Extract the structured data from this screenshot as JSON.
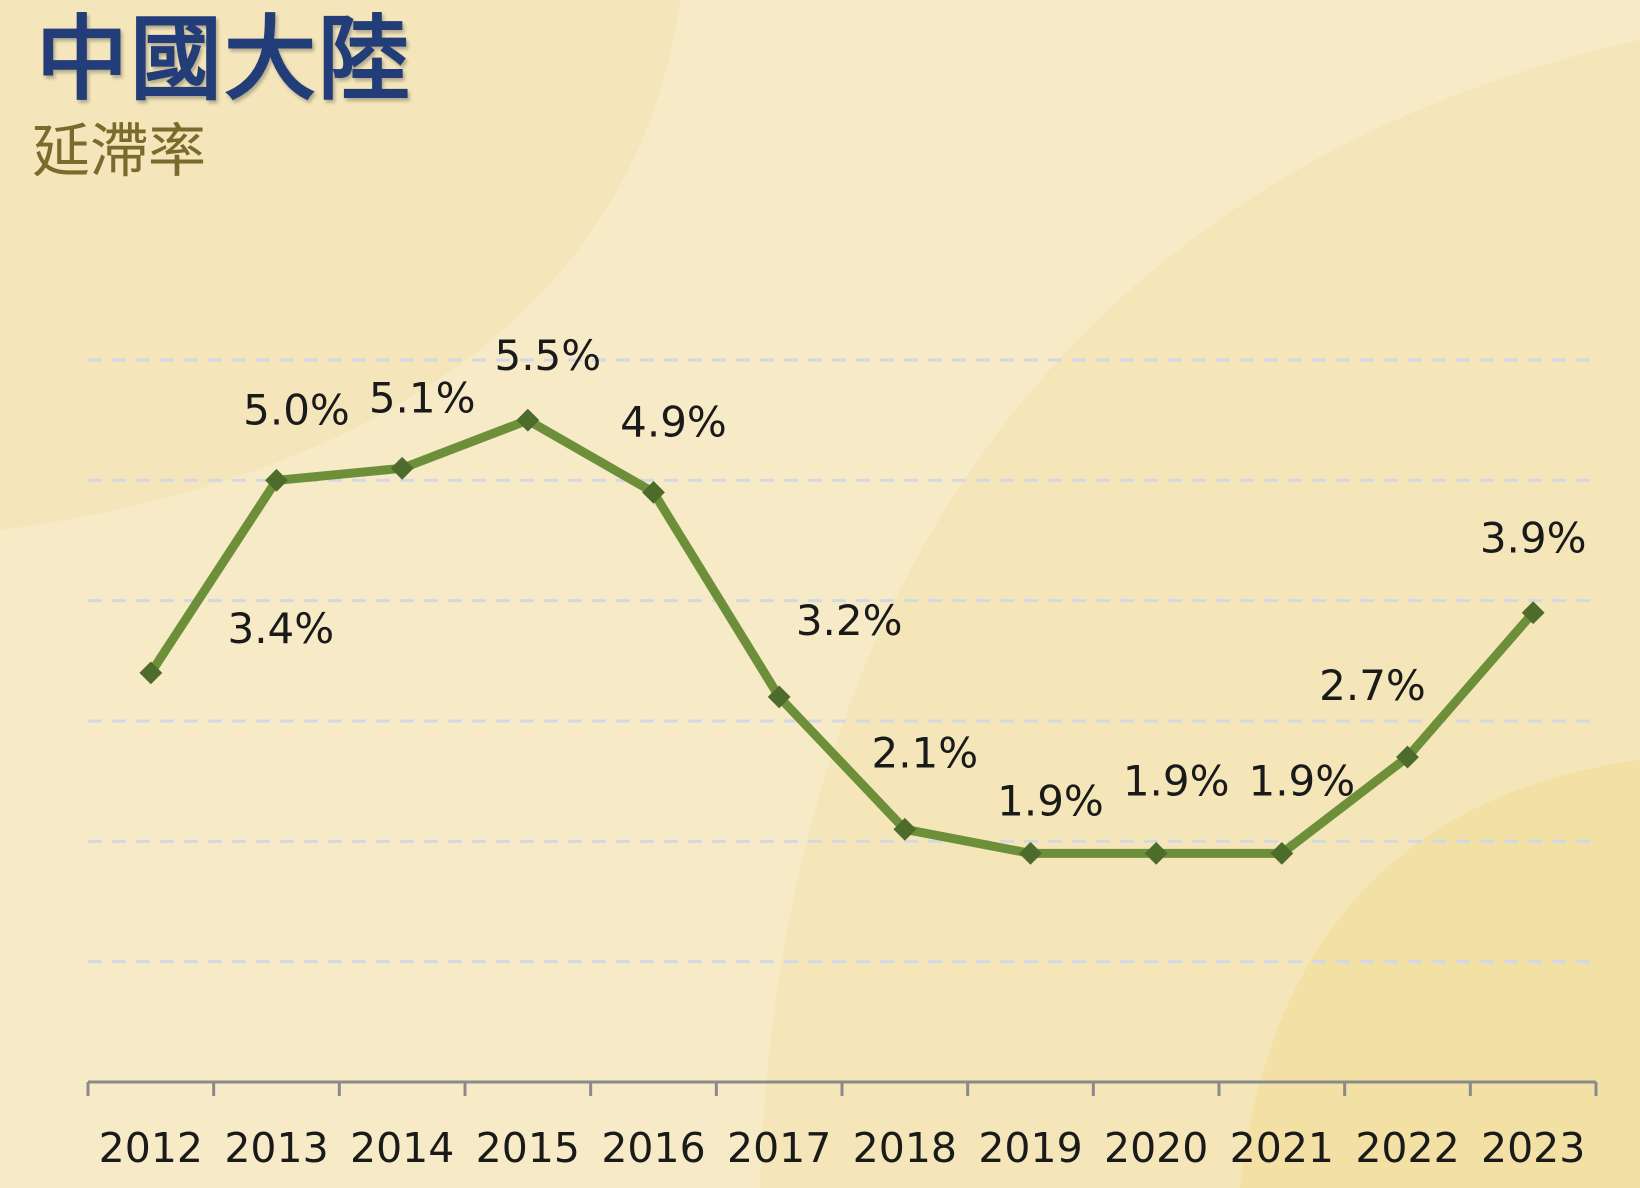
{
  "header": {
    "title": "中國大陸",
    "subtitle": "延滯率"
  },
  "colors": {
    "background": "#f6ebc6",
    "title": "#233d78",
    "subtitle": "#7a6a2c",
    "line": "#6e8f3a",
    "marker": "#4d6b2a",
    "gridline": "#d4d8e4",
    "axis": "#8a8a8a"
  },
  "chart_data": {
    "type": "line",
    "title": "延滯率",
    "categories": [
      "2012",
      "2013",
      "2014",
      "2015",
      "2016",
      "2017",
      "2018",
      "2019",
      "2020",
      "2021",
      "2022",
      "2023"
    ],
    "series": [
      {
        "values": [
          3.4,
          5.0,
          5.1,
          5.5,
          4.9,
          3.2,
          2.1,
          1.9,
          1.9,
          1.9,
          2.7,
          3.9
        ],
        "labels": [
          "3.4%",
          "5.0%",
          "5.1%",
          "5.5%",
          "4.9%",
          "3.2%",
          "2.1%",
          "1.9%",
          "1.9%",
          "1.9%",
          "2.7%",
          "3.9%"
        ]
      }
    ],
    "ylim": [
      0,
      6
    ],
    "grid": true,
    "legend": "none",
    "marker": "diamond"
  }
}
